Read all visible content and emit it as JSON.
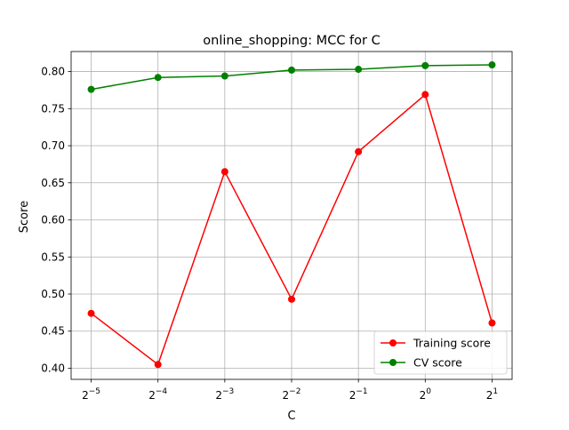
{
  "chart_data": {
    "type": "line",
    "title": "online_shopping: MCC for C",
    "xlabel": "C",
    "ylabel": "Score",
    "x_scale": "log2",
    "x": [
      0.03125,
      0.0625,
      0.125,
      0.25,
      0.5,
      1,
      2
    ],
    "x_tick_labels": [
      {
        "base": "2",
        "exp": "−5"
      },
      {
        "base": "2",
        "exp": "−4"
      },
      {
        "base": "2",
        "exp": "−3"
      },
      {
        "base": "2",
        "exp": "−2"
      },
      {
        "base": "2",
        "exp": "−1"
      },
      {
        "base": "2",
        "exp": "0"
      },
      {
        "base": "2",
        "exp": "1"
      }
    ],
    "ylim": [
      0.385,
      0.827
    ],
    "y_ticks": [
      "0.40",
      "0.45",
      "0.50",
      "0.55",
      "0.60",
      "0.65",
      "0.70",
      "0.75",
      "0.80"
    ],
    "grid": true,
    "legend_position": "lower-right",
    "series": [
      {
        "name": "Training score",
        "color": "#ff0000",
        "marker": "circle",
        "values": [
          0.474,
          0.405,
          0.665,
          0.493,
          0.692,
          0.769,
          0.461
        ]
      },
      {
        "name": "CV score",
        "color": "#008000",
        "marker": "circle",
        "values": [
          0.776,
          0.792,
          0.794,
          0.802,
          0.803,
          0.808,
          0.809
        ]
      }
    ]
  }
}
